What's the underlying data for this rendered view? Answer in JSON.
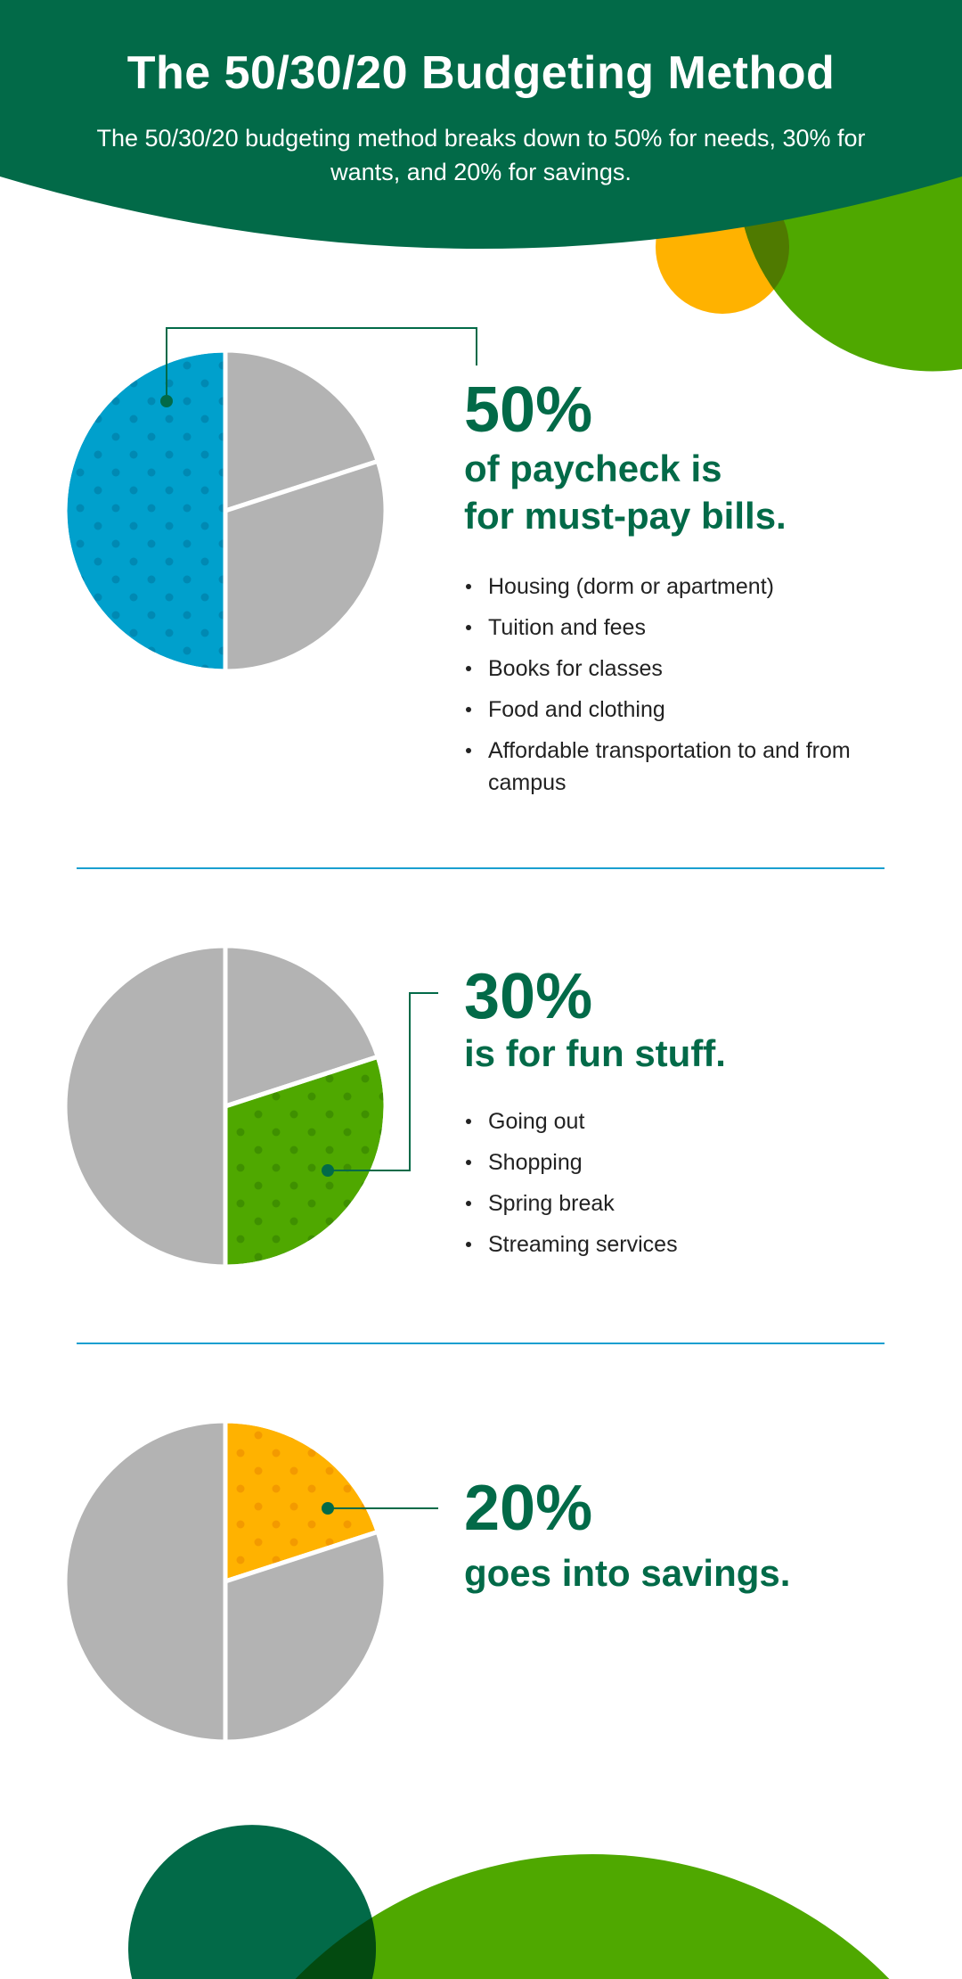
{
  "header": {
    "title": "The 50/30/20 Budgeting Method",
    "subtitle": "The 50/30/20 budgeting method breaks down to 50% for needs, 30% for wants, and 20% for savings."
  },
  "colors": {
    "dark_green": "#026a48",
    "needs_blue": "#00a0cc",
    "wants_green": "#4fa800",
    "savings_yellow": "#ffb200",
    "neutral_gray": "#b3b3b3",
    "divider_blue": "#1a9fd0"
  },
  "sections": [
    {
      "percent": "50%",
      "heading_lines": [
        "of paycheck is",
        "for must-pay bills."
      ],
      "bullets": [
        "Housing (dorm or apartment)",
        "Tuition and fees",
        "Books for classes",
        "Food and clothing",
        "Affordable transportation to and from campus"
      ]
    },
    {
      "percent": "30%",
      "heading_lines": [
        "is for fun stuff."
      ],
      "bullets": [
        "Going out",
        "Shopping",
        "Spring break",
        "Streaming services"
      ]
    },
    {
      "percent": "20%",
      "heading_lines": [
        "goes into savings."
      ],
      "bullets": []
    }
  ],
  "chart_data": [
    {
      "type": "pie",
      "slices": [
        {
          "label": "savings",
          "value": 20
        },
        {
          "label": "wants",
          "value": 30
        },
        {
          "label": "needs",
          "value": 50
        }
      ],
      "highlighted": "needs",
      "highlight_color": "#00a0cc"
    },
    {
      "type": "pie",
      "slices": [
        {
          "label": "savings",
          "value": 20
        },
        {
          "label": "wants",
          "value": 30
        },
        {
          "label": "needs",
          "value": 50
        }
      ],
      "highlighted": "wants",
      "highlight_color": "#4fa800"
    },
    {
      "type": "pie",
      "slices": [
        {
          "label": "savings",
          "value": 20
        },
        {
          "label": "wants",
          "value": 30
        },
        {
          "label": "needs",
          "value": 50
        }
      ],
      "highlighted": "savings",
      "highlight_color": "#ffb200"
    }
  ]
}
